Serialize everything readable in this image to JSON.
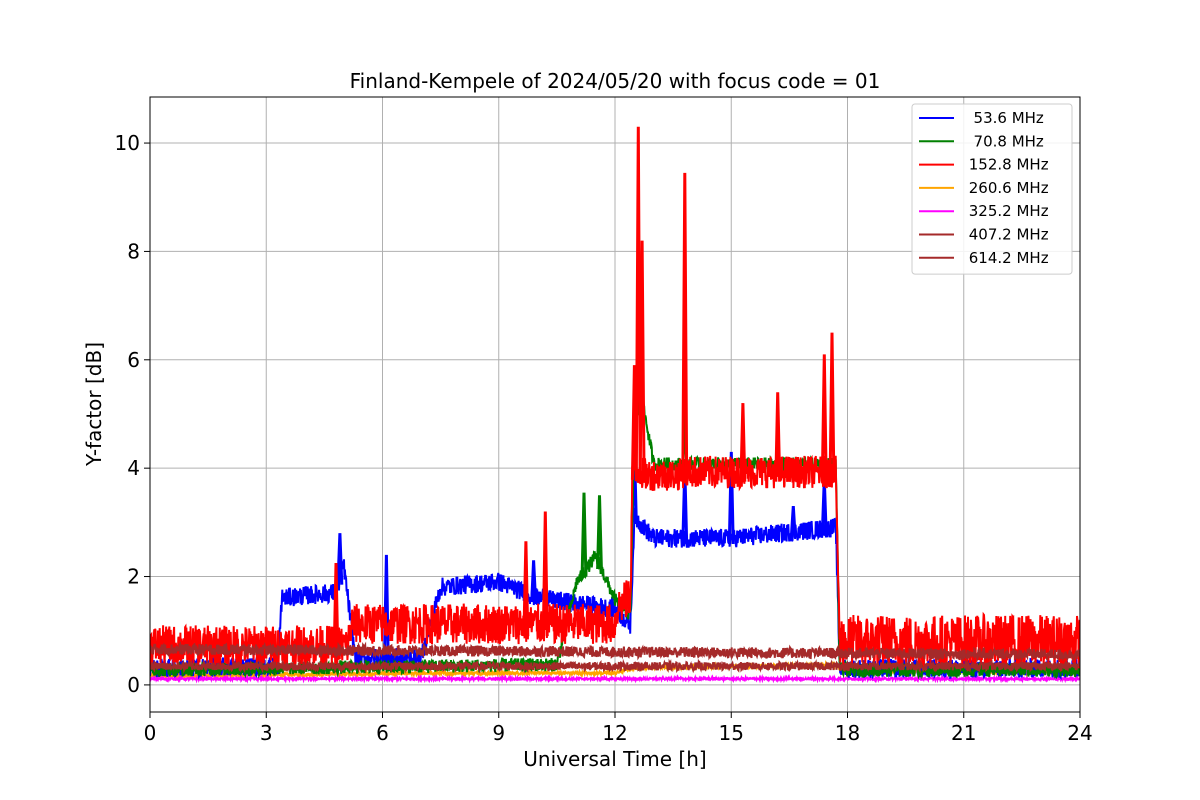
{
  "chart_data": {
    "type": "line",
    "title": "Finland-Kempele of 2024/05/20 with focus code = 01",
    "xlabel": "Universal Time [h]",
    "ylabel": "Y-factor [dB]",
    "xlim": [
      0,
      24
    ],
    "ylim": [
      -0.5,
      10.85
    ],
    "xticks": [
      0,
      3,
      6,
      9,
      12,
      15,
      18,
      21,
      24
    ],
    "yticks": [
      0,
      2,
      4,
      6,
      8,
      10
    ],
    "grid": true,
    "legend_position": "top-right",
    "series": [
      {
        "name": "  53.6 MHz",
        "color": "#0000ff",
        "points": [
          [
            0,
            0.2
          ],
          [
            3.3,
            0.25
          ],
          [
            3.4,
            1.5
          ],
          [
            4.8,
            1.6
          ],
          [
            5.0,
            2.1
          ],
          [
            5.3,
            0.4
          ],
          [
            7,
            0.4
          ],
          [
            7.5,
            1.7
          ],
          [
            9,
            1.8
          ],
          [
            10,
            1.5
          ],
          [
            12,
            1.3
          ],
          [
            12.4,
            1.0
          ],
          [
            12.5,
            3.0
          ],
          [
            13,
            2.6
          ],
          [
            15,
            2.6
          ],
          [
            17.7,
            2.8
          ],
          [
            17.8,
            0.2
          ],
          [
            24,
            0.2
          ]
        ],
        "spikes": [
          [
            4.9,
            2.8
          ],
          [
            6.1,
            2.4
          ],
          [
            9.9,
            2.3
          ],
          [
            12.5,
            4.4
          ],
          [
            13.8,
            4.0
          ],
          [
            15.0,
            4.3
          ],
          [
            16.6,
            3.3
          ],
          [
            17.4,
            3.8
          ]
        ]
      },
      {
        "name": "  70.8 MHz",
        "color": "#008000",
        "points": [
          [
            0,
            0.2
          ],
          [
            10.5,
            0.3
          ],
          [
            11,
            1.8
          ],
          [
            11.5,
            2.3
          ],
          [
            12,
            1.5
          ],
          [
            12.4,
            1.2
          ],
          [
            12.5,
            4.9
          ],
          [
            12.7,
            5.2
          ],
          [
            13,
            4.0
          ],
          [
            17.7,
            4.0
          ],
          [
            17.8,
            0.2
          ],
          [
            24,
            0.2
          ]
        ],
        "spikes": [
          [
            11.2,
            3.55
          ],
          [
            11.6,
            3.5
          ],
          [
            12.55,
            5.7
          ],
          [
            13.8,
            5.2
          ]
        ]
      },
      {
        "name": " 152.8 MHz",
        "color": "#ff0000",
        "points": [
          [
            0,
            0.5
          ],
          [
            5.1,
            0.5
          ],
          [
            5.2,
            0.9
          ],
          [
            12,
            0.9
          ],
          [
            12.05,
            1.2
          ],
          [
            12.4,
            1.4
          ],
          [
            12.45,
            3.8
          ],
          [
            12.8,
            3.7
          ],
          [
            13.7,
            3.7
          ],
          [
            13.75,
            3.75
          ],
          [
            17.7,
            3.75
          ],
          [
            17.8,
            0.5
          ],
          [
            24,
            0.5
          ]
        ],
        "spikes": [
          [
            4.8,
            2.25
          ],
          [
            9.7,
            2.65
          ],
          [
            10.2,
            3.2
          ],
          [
            12.5,
            5.9
          ],
          [
            12.6,
            10.3
          ],
          [
            12.7,
            8.2
          ],
          [
            13.8,
            9.45
          ],
          [
            15.3,
            5.2
          ],
          [
            16.2,
            5.4
          ],
          [
            17.4,
            6.1
          ],
          [
            17.6,
            6.5
          ]
        ]
      },
      {
        "name": " 260.6 MHz",
        "color": "#ffa500",
        "points": [
          [
            0,
            0.15
          ],
          [
            8,
            0.2
          ],
          [
            12,
            0.2
          ],
          [
            12.5,
            0.3
          ],
          [
            17.7,
            0.35
          ],
          [
            18,
            0.25
          ],
          [
            24,
            0.2
          ]
        ],
        "spikes": []
      },
      {
        "name": " 325.2 MHz",
        "color": "#ff00ff",
        "points": [
          [
            0,
            0.1
          ],
          [
            24,
            0.1
          ]
        ],
        "spikes": []
      },
      {
        "name": " 407.2 MHz",
        "color": "#a52a2a",
        "points": [
          [
            0,
            0.3
          ],
          [
            24,
            0.3
          ]
        ],
        "spikes": []
      },
      {
        "name": " 614.2 MHz",
        "color": "#a52a2a",
        "points": [
          [
            0,
            0.6
          ],
          [
            24,
            0.5
          ]
        ],
        "spikes": []
      }
    ]
  }
}
